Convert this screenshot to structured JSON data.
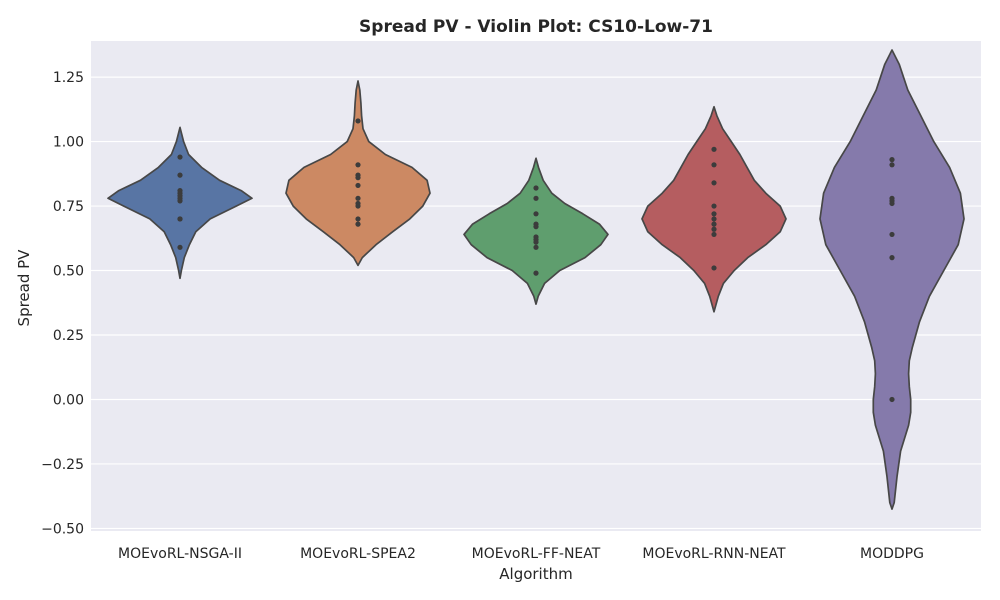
{
  "chart_data": {
    "type": "violin",
    "title": "Spread PV - Violin Plot: CS10-Low-71",
    "xlabel": "Algorithm",
    "ylabel": "Spread PV",
    "ylim": [
      -0.51,
      1.39
    ],
    "yticks": [
      -0.5,
      -0.25,
      0.0,
      0.25,
      0.5,
      0.75,
      1.0,
      1.25
    ],
    "ytick_labels": [
      "−0.50",
      "−0.25",
      "0.00",
      "0.25",
      "0.50",
      "0.75",
      "1.00",
      "1.25"
    ],
    "grid": true,
    "background": "#eaeaf2",
    "categories": [
      "MOEvoRL-NSGA-II",
      "MOEvoRL-SPEA2",
      "MOEvoRL-FF-NEAT",
      "MOEvoRL-RNN-NEAT",
      "MODDPG"
    ],
    "series": [
      {
        "color": "#5875a4",
        "values": [
          0.94,
          0.87,
          0.81,
          0.8,
          0.79,
          0.78,
          0.77,
          0.7,
          0.7,
          0.59
        ],
        "profile": [
          [
            0.47,
            0.0
          ],
          [
            0.5,
            0.02
          ],
          [
            0.55,
            0.06
          ],
          [
            0.6,
            0.13
          ],
          [
            0.65,
            0.22
          ],
          [
            0.7,
            0.42
          ],
          [
            0.75,
            0.78
          ],
          [
            0.78,
            1.0
          ],
          [
            0.81,
            0.85
          ],
          [
            0.85,
            0.55
          ],
          [
            0.9,
            0.3
          ],
          [
            0.95,
            0.12
          ],
          [
            1.0,
            0.05
          ],
          [
            1.055,
            0.0
          ]
        ]
      },
      {
        "color": "#cc8963",
        "values": [
          1.08,
          0.91,
          0.87,
          0.86,
          0.83,
          0.78,
          0.76,
          0.75,
          0.7,
          0.68
        ],
        "profile": [
          [
            0.52,
            0.0
          ],
          [
            0.55,
            0.06
          ],
          [
            0.6,
            0.25
          ],
          [
            0.65,
            0.48
          ],
          [
            0.7,
            0.72
          ],
          [
            0.75,
            0.9
          ],
          [
            0.8,
            1.0
          ],
          [
            0.85,
            0.96
          ],
          [
            0.9,
            0.75
          ],
          [
            0.95,
            0.38
          ],
          [
            1.0,
            0.15
          ],
          [
            1.05,
            0.07
          ],
          [
            1.1,
            0.05
          ],
          [
            1.15,
            0.04
          ],
          [
            1.2,
            0.025
          ],
          [
            1.235,
            0.0
          ]
        ]
      },
      {
        "color": "#5f9e6e",
        "values": [
          0.82,
          0.78,
          0.72,
          0.68,
          0.67,
          0.63,
          0.62,
          0.61,
          0.59,
          0.49
        ],
        "profile": [
          [
            0.37,
            0.0
          ],
          [
            0.4,
            0.03
          ],
          [
            0.45,
            0.12
          ],
          [
            0.5,
            0.33
          ],
          [
            0.55,
            0.68
          ],
          [
            0.6,
            0.9
          ],
          [
            0.64,
            1.0
          ],
          [
            0.68,
            0.88
          ],
          [
            0.72,
            0.65
          ],
          [
            0.76,
            0.4
          ],
          [
            0.8,
            0.22
          ],
          [
            0.85,
            0.1
          ],
          [
            0.9,
            0.035
          ],
          [
            0.935,
            0.0
          ]
        ]
      },
      {
        "color": "#b55d60",
        "values": [
          0.97,
          0.91,
          0.84,
          0.75,
          0.72,
          0.7,
          0.68,
          0.66,
          0.64,
          0.51
        ],
        "profile": [
          [
            0.34,
            0.0
          ],
          [
            0.4,
            0.06
          ],
          [
            0.45,
            0.13
          ],
          [
            0.5,
            0.28
          ],
          [
            0.55,
            0.47
          ],
          [
            0.6,
            0.72
          ],
          [
            0.65,
            0.92
          ],
          [
            0.7,
            1.0
          ],
          [
            0.75,
            0.92
          ],
          [
            0.8,
            0.72
          ],
          [
            0.85,
            0.56
          ],
          [
            0.9,
            0.46
          ],
          [
            0.95,
            0.36
          ],
          [
            1.0,
            0.24
          ],
          [
            1.05,
            0.12
          ],
          [
            1.1,
            0.04
          ],
          [
            1.135,
            0.0
          ]
        ]
      },
      {
        "color": "#857aab",
        "values": [
          0.93,
          0.91,
          0.78,
          0.77,
          0.76,
          0.64,
          0.55,
          0.0
        ],
        "profile": [
          [
            -0.425,
            0.0
          ],
          [
            -0.4,
            0.03
          ],
          [
            -0.3,
            0.07
          ],
          [
            -0.2,
            0.12
          ],
          [
            -0.1,
            0.23
          ],
          [
            -0.05,
            0.26
          ],
          [
            0.0,
            0.26
          ],
          [
            0.05,
            0.24
          ],
          [
            0.1,
            0.23
          ],
          [
            0.15,
            0.24
          ],
          [
            0.2,
            0.28
          ],
          [
            0.3,
            0.38
          ],
          [
            0.4,
            0.52
          ],
          [
            0.5,
            0.72
          ],
          [
            0.6,
            0.92
          ],
          [
            0.7,
            1.0
          ],
          [
            0.8,
            0.95
          ],
          [
            0.9,
            0.8
          ],
          [
            1.0,
            0.58
          ],
          [
            1.1,
            0.4
          ],
          [
            1.2,
            0.22
          ],
          [
            1.3,
            0.1
          ],
          [
            1.355,
            0.0
          ]
        ]
      }
    ]
  }
}
